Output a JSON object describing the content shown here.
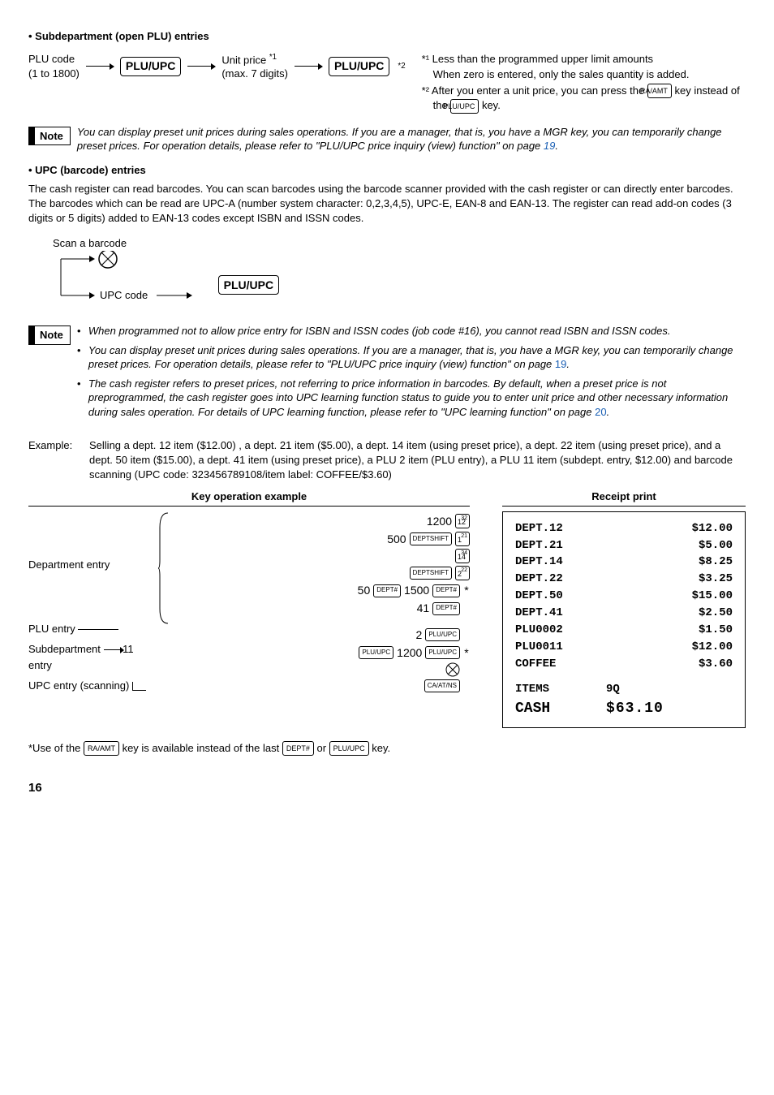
{
  "section1_title": "• Subdepartment (open PLU) entries",
  "flow": {
    "plu_code": "PLU code",
    "plu_code_range": "(1 to 1800)",
    "key_pluupc": "PLU/UPC",
    "unit_price": "Unit price",
    "unit_price_sup": "*1",
    "unit_price_sub": "(max. 7 digits)",
    "end_sup": "*2"
  },
  "footnotes1": {
    "f1a": "*¹ Less than the programmed upper limit amounts",
    "f1b": "When zero is entered, only the sales quantity is added.",
    "f2a": "*² After you enter a unit price, you can press the ",
    "f2_key1": "RA/AMT",
    "f2_mid": " key instead of the ",
    "f2_key2": "PLU/UPC",
    "f2_end": " key."
  },
  "note1": "You can display preset unit prices during sales operations.  If you are a manager, that is, you have a MGR key, you can temporarily change preset prices.   For operation details, please refer to \"PLU/UPC price inquiry (view) function\" on page ",
  "note1_page": "19",
  "note1_end": ".",
  "section2_title": "• UPC (barcode) entries",
  "upc_body": "The cash register can read barcodes.  You can scan barcodes using the barcode scanner provided with the cash register or can directly enter barcodes. The barcodes which can be read are UPC-A (number system character: 0,2,3,4,5), UPC-E, EAN-8 and  EAN-13. The register can read add-on codes (3 digits or 5 digits) added to EAN-13 codes except ISBN and ISSN codes.",
  "scan_lbl": "Scan a barcode",
  "upc_code_lbl": "UPC code",
  "note2": {
    "b1": "When programmed not to allow price entry for ISBN and ISSN codes (job code #16), you cannot read ISBN and ISSN codes.",
    "b2a": "You can display preset unit prices during sales operations.  If you are a manager, that is, you have a MGR key, you can temporarily change preset prices.   For operation details, please refer to \"PLU/UPC price inquiry (view) function\" on page ",
    "b2_page": "19",
    "b2b": ".",
    "b3a": "The cash register refers to preset prices, not referring to price information in barcodes.  By default, when a preset price is not preprogrammed, the cash register goes into UPC learning function status to guide you to enter unit price and other necessary information during sales operation.  For details of UPC learning function, please refer to \"UPC learning function\" on page ",
    "b3_page": "20",
    "b3b": "."
  },
  "example_label": "Example:",
  "example_body": "Selling a dept. 12 item ($12.00) , a dept. 21 item ($5.00), a dept. 14 item (using preset price), a dept. 22 item (using preset price), and a dept. 50 item ($15.00), a dept. 41 item (using preset price), a PLU 2 item (PLU entry), a PLU 11 item (subdept. entry, $12.00) and barcode scanning (UPC code: 323456789108/item label: COFFEE/$3.60)",
  "keyop_head": "Key operation example",
  "receipt_head": "Receipt print",
  "labels": {
    "dept_entry": "Department entry",
    "plu_entry": "PLU entry",
    "subdept_entry": "Subdepartment",
    "entry_word": "entry",
    "upc_entry": "UPC entry (scanning)"
  },
  "keyop": {
    "r1_num": "1200",
    "r1_key_main": "12",
    "r1_key_sup": "32",
    "r2_num": "500",
    "r2_k1": "DEPTSHIFT",
    "r2_key_main": "1",
    "r2_key_sup": "21",
    "r3_key_main": "14",
    "r3_key_sup": "34",
    "r4_k1": "DEPTSHIFT",
    "r4_key_main": "2",
    "r4_key_sup": "22",
    "r5_n1": "50",
    "r5_k1": "DEPT#",
    "r5_n2": "1500",
    "r5_k2": "DEPT#",
    "r5_star": "*",
    "r6_n": "41",
    "r6_k": "DEPT#",
    "r7_n": "2",
    "r7_k": "PLU/UPC",
    "r8_n1": "11",
    "r8_k1": "PLU/UPC",
    "r8_n2": "1200",
    "r8_k2": "PLU/UPC",
    "r8_star": "*",
    "r10_k": "CA/AT/NS"
  },
  "receipt": {
    "rows": [
      [
        "DEPT.12",
        "$12.00"
      ],
      [
        "DEPT.21",
        "$5.00"
      ],
      [
        "DEPT.14",
        "$8.25"
      ],
      [
        "DEPT.22",
        "$3.25"
      ],
      [
        "DEPT.50",
        "$15.00"
      ],
      [
        "DEPT.41",
        "$2.50"
      ],
      [
        "PLU0002",
        "$1.50"
      ],
      [
        "PLU0011",
        "$12.00"
      ],
      [
        "COFFEE",
        "$3.60"
      ]
    ],
    "items_lbl": "ITEMS",
    "items_q": "9Q",
    "cash_lbl": "CASH",
    "cash_amt": "$63.10"
  },
  "footnote2": {
    "a": "*Use of the ",
    "k1": "RA/AMT",
    "b": " key is available instead of the last ",
    "k2": "DEPT#",
    "c": " or ",
    "k3": "PLU/UPC",
    "d": " key."
  },
  "page": "16"
}
